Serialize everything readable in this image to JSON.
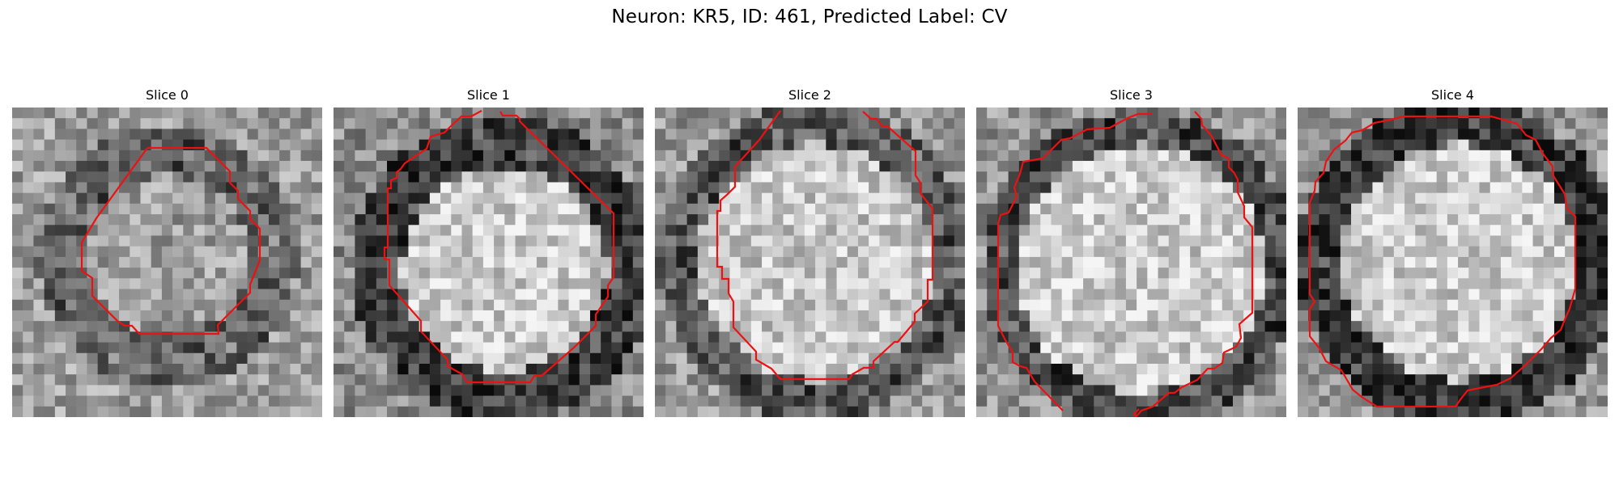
{
  "figure": {
    "title": "Neuron: KR5, ID: 461, Predicted Label: CV"
  },
  "outline_color": "#ee1111",
  "panels": [
    {
      "title": "Slice 0"
    },
    {
      "title": "Slice 1"
    },
    {
      "title": "Slice 2"
    },
    {
      "title": "Slice 3"
    },
    {
      "title": "Slice 4"
    }
  ]
}
